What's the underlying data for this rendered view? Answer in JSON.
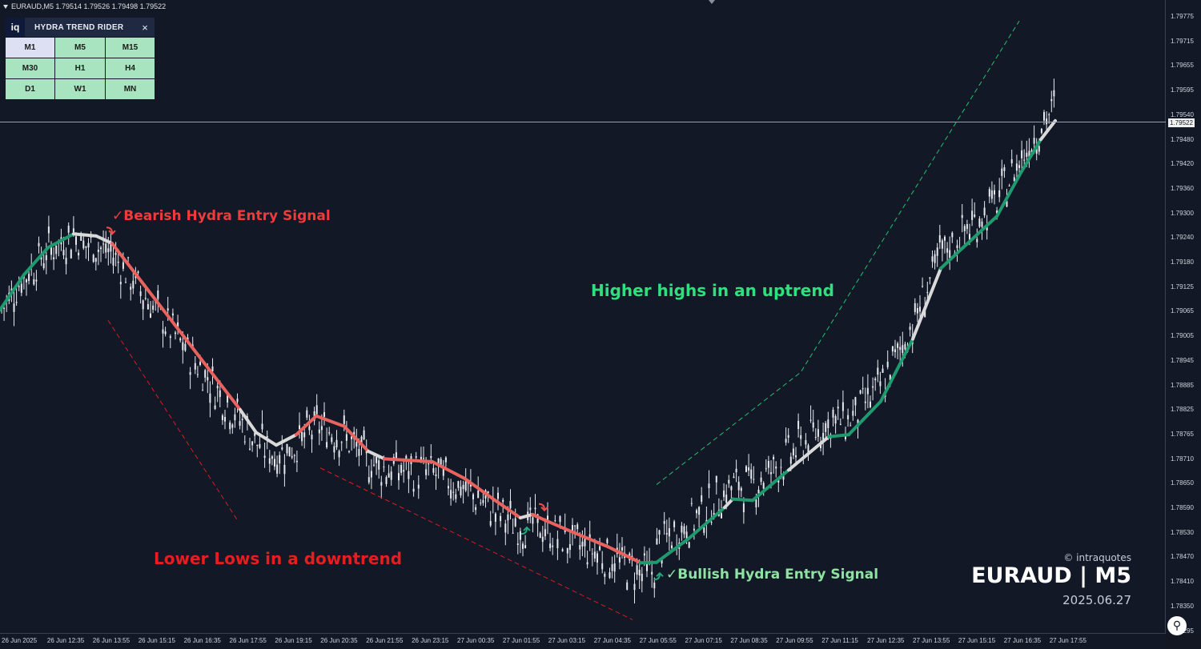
{
  "symbol_header": "EURAUD,M5  1.79514 1.79526 1.79498 1.79522",
  "panel": {
    "logo": "iq",
    "title": "HYDRA TREND RIDER",
    "close": "×",
    "timeframes": [
      "M1",
      "M5",
      "M15",
      "M30",
      "H1",
      "H4",
      "D1",
      "W1",
      "MN"
    ],
    "active_timeframe": "M1"
  },
  "annotations": {
    "bearish": "Bearish Hydra Entry Signal",
    "bullish": "Bullish Hydra Entry Signal",
    "lower_lows": "Lower Lows in a downtrend",
    "higher_highs": "Higher highs in an uptrend"
  },
  "watermark": {
    "copyright": "© intraquotes",
    "symbol": "EURAUD | M5",
    "date": "2025.06.27"
  },
  "price_axis": [
    "1.79775",
    "1.79715",
    "1.79655",
    "1.79595",
    "1.79540",
    "1.79480",
    "1.79420",
    "1.79360",
    "1.79300",
    "1.79240",
    "1.79180",
    "1.79125",
    "1.79065",
    "1.79005",
    "1.78945",
    "1.78885",
    "1.78825",
    "1.78765",
    "1.78710",
    "1.78650",
    "1.78590",
    "1.78530",
    "1.78470",
    "1.78410",
    "1.78350",
    "1.78295"
  ],
  "current_price": "1.79522",
  "time_axis": [
    "26 Jun 2025",
    "26 Jun 12:35",
    "26 Jun 13:55",
    "26 Jun 15:15",
    "26 Jun 16:35",
    "26 Jun 17:55",
    "26 Jun 19:15",
    "26 Jun 20:35",
    "26 Jun 21:55",
    "26 Jun 23:15",
    "27 Jun 00:35",
    "27 Jun 01:55",
    "27 Jun 03:15",
    "27 Jun 04:35",
    "27 Jun 05:55",
    "27 Jun 07:15",
    "27 Jun 08:35",
    "27 Jun 09:55",
    "27 Jun 11:15",
    "27 Jun 12:35",
    "27 Jun 13:55",
    "27 Jun 15:15",
    "27 Jun 16:35",
    "27 Jun 17:55"
  ],
  "colors": {
    "background": "#121826",
    "candle": "#e8eaf0",
    "ma_bull": "#1f9a6f",
    "ma_bear": "#e9625e",
    "ma_neutral": "#d9d9d9",
    "trend_down": "#d61e1e",
    "trend_up": "#22c26b"
  },
  "chart_data": {
    "type": "candlestick",
    "symbol": "EURAUD",
    "timeframe": "M5",
    "ylim": [
      1.78295,
      1.79775
    ],
    "last_price": 1.79522,
    "ma_path": [
      {
        "t": 0,
        "p": 1.7907,
        "c": "bull"
      },
      {
        "t": 30,
        "p": 1.79155,
        "c": "bull"
      },
      {
        "t": 60,
        "p": 1.7922,
        "c": "bull"
      },
      {
        "t": 92,
        "p": 1.79253,
        "c": "bull"
      },
      {
        "t": 120,
        "p": 1.79248,
        "c": "neutral"
      },
      {
        "t": 140,
        "p": 1.7923,
        "c": "neutral"
      },
      {
        "t": 150,
        "p": 1.79205,
        "c": "bear"
      },
      {
        "t": 180,
        "p": 1.7913,
        "c": "bear"
      },
      {
        "t": 230,
        "p": 1.79005,
        "c": "bear"
      },
      {
        "t": 270,
        "p": 1.78905,
        "c": "bear"
      },
      {
        "t": 300,
        "p": 1.7883,
        "c": "bear"
      },
      {
        "t": 320,
        "p": 1.78775,
        "c": "neutral"
      },
      {
        "t": 345,
        "p": 1.78745,
        "c": "neutral"
      },
      {
        "t": 370,
        "p": 1.7877,
        "c": "neutral"
      },
      {
        "t": 395,
        "p": 1.78815,
        "c": "bear"
      },
      {
        "t": 430,
        "p": 1.7879,
        "c": "bear"
      },
      {
        "t": 460,
        "p": 1.7873,
        "c": "bear"
      },
      {
        "t": 480,
        "p": 1.78712,
        "c": "neutral"
      },
      {
        "t": 540,
        "p": 1.78705,
        "c": "bear"
      },
      {
        "t": 580,
        "p": 1.78665,
        "c": "bear"
      },
      {
        "t": 620,
        "p": 1.7861,
        "c": "bear"
      },
      {
        "t": 650,
        "p": 1.7857,
        "c": "bear"
      },
      {
        "t": 665,
        "p": 1.78578,
        "c": "neutral"
      },
      {
        "t": 680,
        "p": 1.78565,
        "c": "bear"
      },
      {
        "t": 710,
        "p": 1.7854,
        "c": "bear"
      },
      {
        "t": 760,
        "p": 1.785,
        "c": "bear"
      },
      {
        "t": 800,
        "p": 1.78462,
        "c": "bear"
      },
      {
        "t": 820,
        "p": 1.78463,
        "c": "bull"
      },
      {
        "t": 860,
        "p": 1.7852,
        "c": "bull"
      },
      {
        "t": 905,
        "p": 1.78595,
        "c": "bull"
      },
      {
        "t": 915,
        "p": 1.78615,
        "c": "neutral"
      },
      {
        "t": 940,
        "p": 1.78612,
        "c": "bull"
      },
      {
        "t": 985,
        "p": 1.78685,
        "c": "bull"
      },
      {
        "t": 1035,
        "p": 1.78765,
        "c": "neutral"
      },
      {
        "t": 1060,
        "p": 1.7877,
        "c": "bull"
      },
      {
        "t": 1100,
        "p": 1.7885,
        "c": "bull"
      },
      {
        "t": 1140,
        "p": 1.79,
        "c": "bull"
      },
      {
        "t": 1175,
        "p": 1.7917,
        "c": "neutral"
      },
      {
        "t": 1200,
        "p": 1.79215,
        "c": "bull"
      },
      {
        "t": 1245,
        "p": 1.79295,
        "c": "bull"
      },
      {
        "t": 1275,
        "p": 1.794,
        "c": "bull"
      },
      {
        "t": 1300,
        "p": 1.7948,
        "c": "bull"
      },
      {
        "t": 1318,
        "p": 1.79525,
        "c": "neutral"
      }
    ],
    "trend_lines": [
      {
        "kind": "down",
        "pts": [
          [
            135,
            1.79045
          ],
          [
            298,
            1.7856
          ]
        ]
      },
      {
        "kind": "down",
        "pts": [
          [
            400,
            1.7869
          ],
          [
            790,
            1.78325
          ]
        ]
      },
      {
        "kind": "up",
        "pts": [
          [
            820,
            1.7865
          ],
          [
            1000,
            1.7892
          ],
          [
            1273,
            1.79765
          ]
        ]
      }
    ],
    "signals": [
      {
        "kind": "bear",
        "t": 138,
        "p": 1.79255
      },
      {
        "kind": "bear",
        "t": 678,
        "p": 1.7859
      },
      {
        "kind": "bull",
        "t": 656,
        "p": 1.78545
      },
      {
        "kind": "bull",
        "t": 822,
        "p": 1.78435
      }
    ]
  }
}
